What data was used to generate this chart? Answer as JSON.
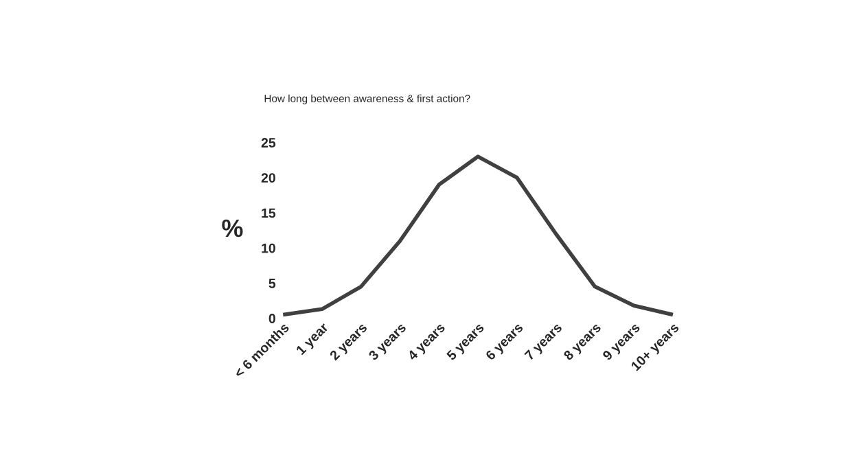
{
  "chart_data": {
    "type": "line",
    "title": "How long between awareness & first action?",
    "ylabel": "%",
    "categories": [
      "< 6 months",
      "1 year",
      "2 years",
      "3 years",
      "4 years",
      "5 years",
      "6 years",
      "7 years",
      "8 years",
      "9 years",
      "10+ years"
    ],
    "series": [
      {
        "color": "#404040",
        "values": [
          0.5,
          1.3,
          4.5,
          11,
          19,
          23,
          20,
          12,
          4.5,
          1.8,
          0.5
        ]
      }
    ],
    "ylim": [
      0,
      25
    ],
    "yticks": [
      0,
      5,
      10,
      15,
      20,
      25
    ],
    "grid": false,
    "legend": false,
    "marker": "none",
    "line_style": "solid"
  }
}
